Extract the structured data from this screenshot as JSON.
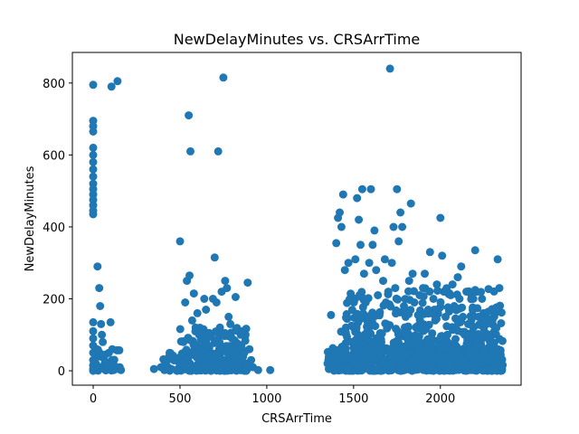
{
  "chart_data": {
    "type": "scatter",
    "title": "NewDelayMinutes vs. CRSArrTime",
    "xlabel": "CRSArrTime",
    "ylabel": "NewDelayMinutes",
    "xlim": [
      -120,
      2465
    ],
    "ylim": [
      -40,
      885
    ],
    "xticks": [
      0,
      500,
      1000,
      1500,
      2000
    ],
    "yticks": [
      0,
      200,
      400,
      600,
      800
    ],
    "grid": false,
    "legend": "none",
    "colors": {
      "marker": "#1f77b4"
    },
    "points": [
      [
        0,
        795
      ],
      [
        0,
        695
      ],
      [
        0,
        680
      ],
      [
        0,
        665
      ],
      [
        0,
        620
      ],
      [
        0,
        600
      ],
      [
        0,
        580
      ],
      [
        0,
        560
      ],
      [
        0,
        540
      ],
      [
        0,
        520
      ],
      [
        0,
        505
      ],
      [
        0,
        490
      ],
      [
        0,
        475
      ],
      [
        0,
        460
      ],
      [
        0,
        445
      ],
      [
        0,
        435
      ],
      [
        0,
        135
      ],
      [
        0,
        110
      ],
      [
        0,
        90
      ],
      [
        0,
        70
      ],
      [
        0,
        50
      ],
      [
        0,
        30
      ],
      [
        0,
        15
      ],
      [
        0,
        5
      ],
      [
        0,
        0
      ],
      [
        15,
        20
      ],
      [
        20,
        60
      ],
      [
        25,
        290
      ],
      [
        30,
        5
      ],
      [
        35,
        230
      ],
      [
        40,
        180
      ],
      [
        45,
        130
      ],
      [
        50,
        100
      ],
      [
        55,
        80
      ],
      [
        60,
        40
      ],
      [
        65,
        5
      ],
      [
        70,
        25
      ],
      [
        75,
        10
      ],
      [
        80,
        3
      ],
      [
        90,
        50
      ],
      [
        95,
        15
      ],
      [
        100,
        135
      ],
      [
        105,
        790
      ],
      [
        110,
        60
      ],
      [
        115,
        30
      ],
      [
        120,
        15
      ],
      [
        130,
        5
      ],
      [
        140,
        805
      ],
      [
        150,
        8
      ],
      [
        160,
        2
      ],
      [
        350,
        5
      ],
      [
        390,
        10
      ],
      [
        410,
        2
      ],
      [
        420,
        25
      ],
      [
        440,
        50
      ],
      [
        450,
        5
      ],
      [
        480,
        2
      ],
      [
        500,
        360
      ],
      [
        510,
        20
      ],
      [
        520,
        80
      ],
      [
        530,
        190
      ],
      [
        540,
        250
      ],
      [
        550,
        710
      ],
      [
        555,
        265
      ],
      [
        560,
        610
      ],
      [
        570,
        140
      ],
      [
        580,
        215
      ],
      [
        590,
        120
      ],
      [
        600,
        160
      ],
      [
        610,
        100
      ],
      [
        620,
        60
      ],
      [
        630,
        30
      ],
      [
        640,
        200
      ],
      [
        650,
        170
      ],
      [
        660,
        70
      ],
      [
        670,
        40
      ],
      [
        690,
        200
      ],
      [
        700,
        315
      ],
      [
        710,
        190
      ],
      [
        720,
        610
      ],
      [
        730,
        120
      ],
      [
        740,
        220
      ],
      [
        750,
        815
      ],
      [
        760,
        250
      ],
      [
        770,
        230
      ],
      [
        780,
        150
      ],
      [
        790,
        130
      ],
      [
        800,
        90
      ],
      [
        810,
        60
      ],
      [
        820,
        205
      ],
      [
        830,
        40
      ],
      [
        840,
        20
      ],
      [
        850,
        100
      ],
      [
        860,
        110
      ],
      [
        870,
        50
      ],
      [
        880,
        20
      ],
      [
        890,
        245
      ],
      [
        900,
        60
      ],
      [
        910,
        30
      ],
      [
        920,
        10
      ],
      [
        950,
        2
      ],
      [
        1020,
        2
      ],
      [
        1350,
        20
      ],
      [
        1360,
        5
      ],
      [
        1370,
        155
      ],
      [
        1380,
        40
      ],
      [
        1400,
        355
      ],
      [
        1410,
        425
      ],
      [
        1420,
        440
      ],
      [
        1430,
        400
      ],
      [
        1440,
        490
      ],
      [
        1450,
        280
      ],
      [
        1460,
        150
      ],
      [
        1470,
        300
      ],
      [
        1480,
        200
      ],
      [
        1490,
        80
      ],
      [
        1500,
        120
      ],
      [
        1510,
        310
      ],
      [
        1520,
        480
      ],
      [
        1530,
        420
      ],
      [
        1540,
        350
      ],
      [
        1550,
        505
      ],
      [
        1560,
        270
      ],
      [
        1570,
        190
      ],
      [
        1580,
        90
      ],
      [
        1590,
        300
      ],
      [
        1600,
        505
      ],
      [
        1610,
        350
      ],
      [
        1620,
        390
      ],
      [
        1630,
        280
      ],
      [
        1640,
        210
      ],
      [
        1650,
        160
      ],
      [
        1660,
        80
      ],
      [
        1670,
        250
      ],
      [
        1680,
        310
      ],
      [
        1690,
        130
      ],
      [
        1700,
        220
      ],
      [
        1710,
        840
      ],
      [
        1720,
        300
      ],
      [
        1730,
        400
      ],
      [
        1740,
        230
      ],
      [
        1750,
        505
      ],
      [
        1760,
        360
      ],
      [
        1770,
        440
      ],
      [
        1780,
        400
      ],
      [
        1790,
        180
      ],
      [
        1800,
        150
      ],
      [
        1810,
        90
      ],
      [
        1820,
        250
      ],
      [
        1830,
        465
      ],
      [
        1840,
        270
      ],
      [
        1850,
        190
      ],
      [
        1860,
        120
      ],
      [
        1870,
        60
      ],
      [
        1880,
        210
      ],
      [
        1890,
        30
      ],
      [
        1900,
        230
      ],
      [
        1910,
        270
      ],
      [
        1920,
        120
      ],
      [
        1930,
        170
      ],
      [
        1940,
        330
      ],
      [
        1950,
        90
      ],
      [
        1960,
        200
      ],
      [
        1970,
        140
      ],
      [
        1980,
        240
      ],
      [
        1990,
        60
      ],
      [
        2000,
        425
      ],
      [
        2010,
        320
      ],
      [
        2020,
        220
      ],
      [
        2030,
        150
      ],
      [
        2040,
        100
      ],
      [
        2050,
        60
      ],
      [
        2060,
        210
      ],
      [
        2070,
        240
      ],
      [
        2080,
        180
      ],
      [
        2090,
        120
      ],
      [
        2100,
        260
      ],
      [
        2110,
        200
      ],
      [
        2120,
        290
      ],
      [
        2130,
        150
      ],
      [
        2140,
        100
      ],
      [
        2150,
        220
      ],
      [
        2160,
        130
      ],
      [
        2170,
        60
      ],
      [
        2180,
        40
      ],
      [
        2190,
        200
      ],
      [
        2200,
        335
      ],
      [
        2210,
        220
      ],
      [
        2220,
        150
      ],
      [
        2230,
        100
      ],
      [
        2240,
        200
      ],
      [
        2250,
        60
      ],
      [
        2260,
        140
      ],
      [
        2270,
        30
      ],
      [
        2280,
        100
      ],
      [
        2290,
        80
      ],
      [
        2300,
        140
      ],
      [
        2310,
        60
      ],
      [
        2320,
        30
      ],
      [
        2330,
        310
      ],
      [
        2340,
        230
      ],
      [
        2345,
        50
      ],
      [
        2350,
        20
      ],
      [
        2355,
        5
      ]
    ],
    "dense_bands": [
      {
        "x": [
          0,
          160
        ],
        "y": [
          0,
          60
        ]
      },
      {
        "x": [
          400,
          900
        ],
        "y": [
          0,
          50
        ]
      },
      {
        "x": [
          500,
          890
        ],
        "y": [
          0,
          120
        ]
      },
      {
        "x": [
          1350,
          2360
        ],
        "y": [
          0,
          70
        ]
      },
      {
        "x": [
          1400,
          2360
        ],
        "y": [
          0,
          180
        ]
      },
      {
        "x": [
          1450,
          2360
        ],
        "y": [
          0,
          230
        ]
      }
    ]
  }
}
